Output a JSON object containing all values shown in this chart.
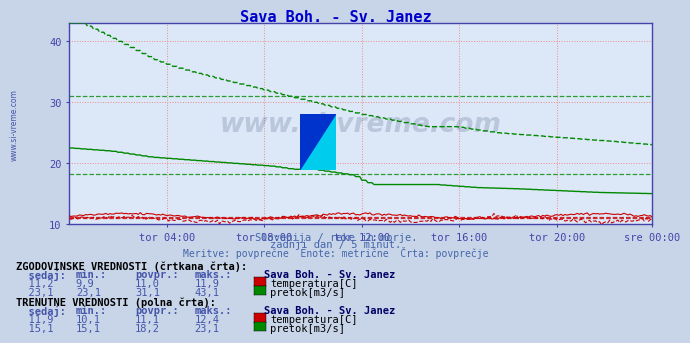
{
  "title": "Sava Boh. - Sv. Janez",
  "title_color": "#0000cc",
  "bg_color": "#c8d4e8",
  "plot_bg_color": "#dce8f8",
  "grid_color_v": "#ee8888",
  "grid_color_h": "#ee8888",
  "xlabel_ticks": [
    "tor 04:00",
    "tor 08:00",
    "tor 12:00",
    "tor 16:00",
    "tor 20:00",
    "sre 00:00"
  ],
  "ymin": 10,
  "ymax": 43,
  "yticks": [
    10,
    20,
    30,
    40
  ],
  "subtitle1": "Slovenija / reke in morje.",
  "subtitle2": "zadnji dan / 5 minut.",
  "subtitle3": "Meritve: povprečne  Enote: metrične  Črta: povprečje",
  "watermark": "www.si-vreme.com",
  "hist_avg_temp": 11.0,
  "hist_avg_flow": 31.1,
  "curr_avg_temp": 11.1,
  "curr_avg_flow": 18.2,
  "temp_color": "#cc0000",
  "flow_color": "#008800",
  "axis_color": "#4444aa",
  "tick_color": "#4444aa",
  "hist_label1": "ZGODOVINSKE VREDNOSTI (črtkana črta):",
  "hist_header": "  sedaj:        min.:       povpr.:       maks.:     Sava Boh. - Sv. Janez",
  "hist_temp_row": "  11,2          9,9         11,0         11,9",
  "hist_flow_row": "  23,1         23,1         31,1         43,1",
  "curr_label1": "TRENUTNE VREDNOSTI (polna črta):",
  "curr_header": "  sedaj:        min.:       povpr.:       maks.:     Sava Boh. - Sv. Janez",
  "curr_temp_row": "  11,9         10,1         11,1         12,4",
  "curr_flow_row": "  15,1         15,1         18,2         23,1",
  "temp_label": "temperatura[C]",
  "flow_label": "pretok[m3/s]"
}
